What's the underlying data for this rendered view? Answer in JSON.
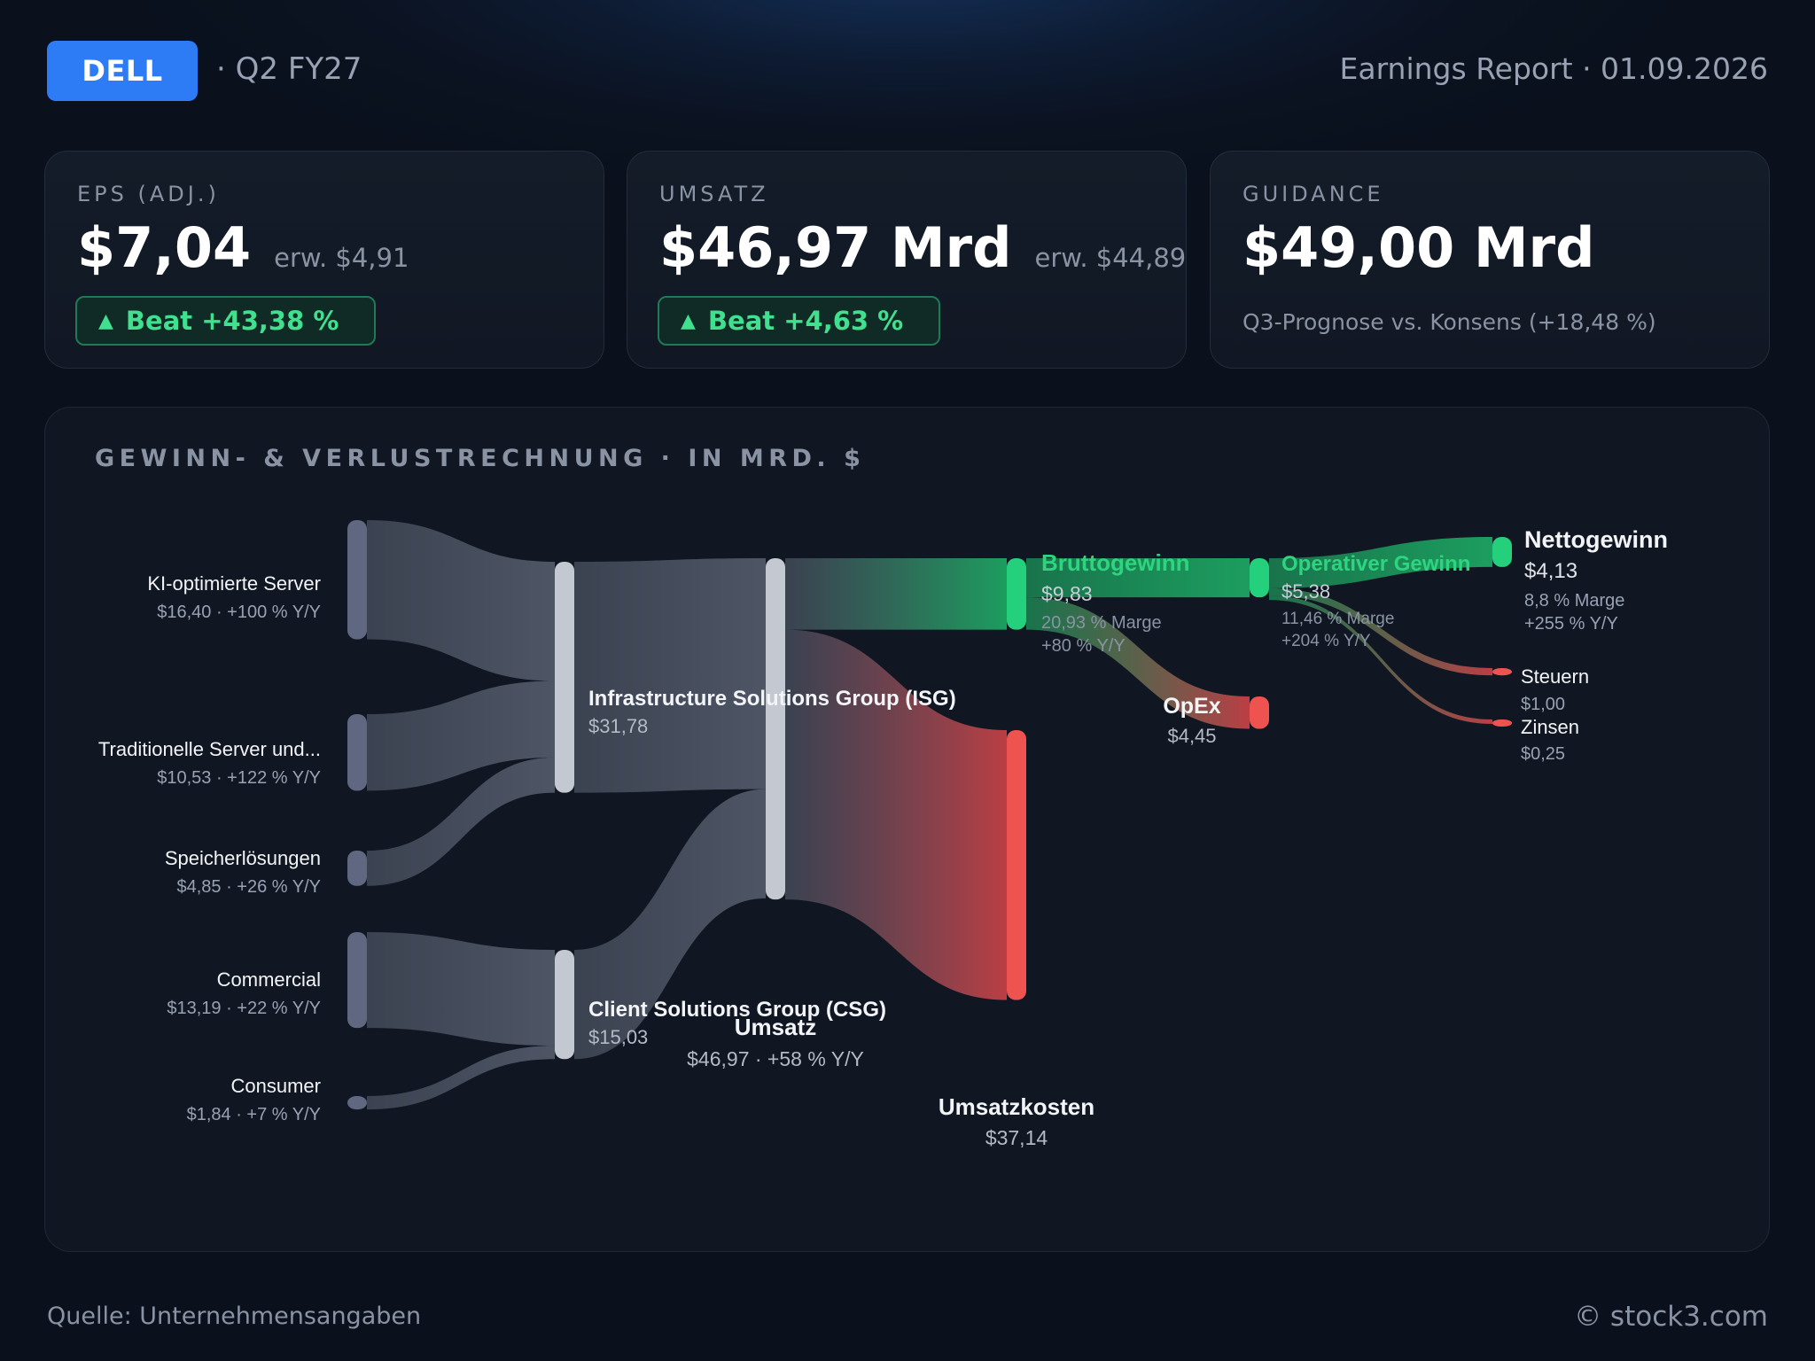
{
  "header": {
    "ticker": "DELL",
    "period": "· Q2 FY27",
    "report": "Earnings Report · 01.09.2026"
  },
  "cards": {
    "eps": {
      "label": "EPS (ADJ.)",
      "value": "$7,04",
      "expected": "erw. $4,91",
      "beat": "Beat +43,38 %"
    },
    "revenue": {
      "label": "UMSATZ",
      "value": "$46,97 Mrd",
      "expected": "erw. $44,89",
      "beat": "Beat +4,63 %"
    },
    "guidance": {
      "label": "GUIDANCE",
      "value": "$49,00 Mrd",
      "sub": "Q3-Prognose vs. Konsens (+18,48 %)"
    }
  },
  "panel": {
    "title": "GEWINN- & VERLUSTRECHNUNG · IN MRD. $"
  },
  "colors": {
    "neutral": "#5d6576",
    "profit": "#1fbf6e",
    "cost": "#e5484d",
    "accent": "#2d7cf6"
  },
  "icons": {
    "beat": "triangle-up-icon"
  },
  "chart_data": {
    "type": "sankey",
    "title": "GEWINN- & VERLUSTRECHNUNG · IN MRD. $",
    "unit": "Mrd. $",
    "nodes": [
      {
        "id": "ki",
        "name": "KI-optimierte Server",
        "value": 16.4,
        "sub": "$16,40 · +100 % Y/Y",
        "kind": "neutral"
      },
      {
        "id": "trad",
        "name": "Traditionelle Server und...",
        "value": 10.53,
        "sub": "$10,53 · +122 % Y/Y",
        "kind": "neutral"
      },
      {
        "id": "spe",
        "name": "Speicherlösungen",
        "value": 4.85,
        "sub": "$4,85 · +26 % Y/Y",
        "kind": "neutral"
      },
      {
        "id": "com",
        "name": "Commercial",
        "value": 13.19,
        "sub": "$13,19 · +22 % Y/Y",
        "kind": "neutral"
      },
      {
        "id": "con",
        "name": "Consumer",
        "value": 1.84,
        "sub": "$1,84 · +7 % Y/Y",
        "kind": "neutral"
      },
      {
        "id": "isg",
        "name": "Infrastructure Solutions Group (ISG)",
        "value": 31.78,
        "sub": "$31,78",
        "kind": "neutral"
      },
      {
        "id": "csg",
        "name": "Client Solutions Group (CSG)",
        "value": 15.03,
        "sub": "$15,03",
        "kind": "neutral"
      },
      {
        "id": "rev",
        "name": "Umsatz",
        "value": 46.97,
        "sub": "$46,97 · +58 % Y/Y",
        "kind": "neutral"
      },
      {
        "id": "gp",
        "name": "Bruttogewinn",
        "value": 9.83,
        "sub": "$9,83",
        "sub2": "20,93 % Marge",
        "sub3": "+80 % Y/Y",
        "kind": "profit"
      },
      {
        "id": "cogs",
        "name": "Umsatzkosten",
        "value": 37.14,
        "sub": "$37,14",
        "kind": "cost"
      },
      {
        "id": "op",
        "name": "Operativer Gewinn",
        "value": 5.38,
        "sub": "$5,38",
        "sub2": "11,46 % Marge",
        "sub3": "+204 % Y/Y",
        "kind": "profit"
      },
      {
        "id": "opex",
        "name": "OpEx",
        "value": 4.45,
        "sub": "$4,45",
        "kind": "cost"
      },
      {
        "id": "net",
        "name": "Nettogewinn",
        "value": 4.13,
        "sub": "$4,13",
        "sub2": "8,8 % Marge",
        "sub3": "+255 % Y/Y",
        "kind": "profit"
      },
      {
        "id": "tax",
        "name": "Steuern",
        "value": 1.0,
        "sub": "$1,00",
        "kind": "cost"
      },
      {
        "id": "int",
        "name": "Zinsen",
        "value": 0.25,
        "sub": "$0,25",
        "kind": "cost"
      }
    ],
    "links": [
      {
        "source": "ki",
        "target": "isg",
        "value": 16.4
      },
      {
        "source": "trad",
        "target": "isg",
        "value": 10.53
      },
      {
        "source": "spe",
        "target": "isg",
        "value": 4.85
      },
      {
        "source": "com",
        "target": "csg",
        "value": 13.19
      },
      {
        "source": "con",
        "target": "csg",
        "value": 1.84
      },
      {
        "source": "isg",
        "target": "rev",
        "value": 31.78
      },
      {
        "source": "csg",
        "target": "rev",
        "value": 15.03
      },
      {
        "source": "rev",
        "target": "gp",
        "value": 9.83
      },
      {
        "source": "rev",
        "target": "cogs",
        "value": 37.14
      },
      {
        "source": "gp",
        "target": "op",
        "value": 5.38
      },
      {
        "source": "gp",
        "target": "opex",
        "value": 4.45
      },
      {
        "source": "op",
        "target": "net",
        "value": 4.13
      },
      {
        "source": "op",
        "target": "tax",
        "value": 1.0
      },
      {
        "source": "op",
        "target": "int",
        "value": 0.25
      }
    ]
  },
  "footer": {
    "source": "Quelle: Unternehmensangaben",
    "copyright": "© stock3.com"
  }
}
